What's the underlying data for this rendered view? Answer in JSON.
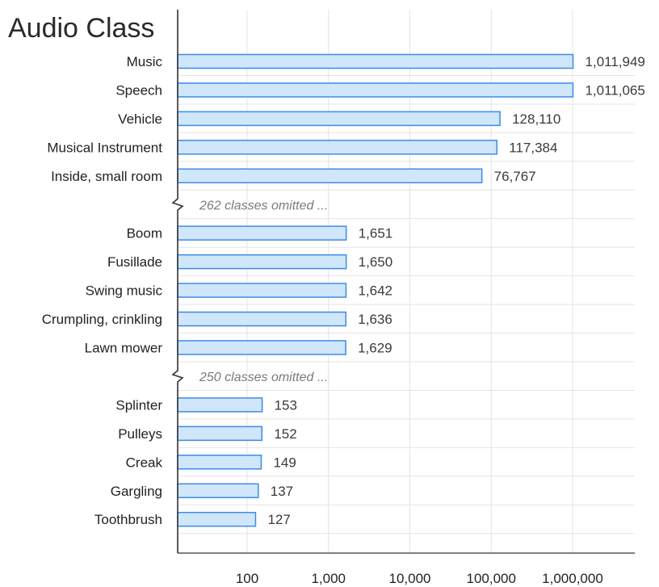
{
  "chart_data": {
    "type": "bar",
    "orientation": "horizontal",
    "title": "Audio Class",
    "xscale": "log",
    "xlim": [
      10,
      5000000
    ],
    "xticks": [
      100,
      1000,
      10000,
      100000,
      1000000
    ],
    "xtick_labels": [
      "100",
      "1,000",
      "10,000",
      "100,000",
      "1,000,000"
    ],
    "grid": true,
    "groups": [
      {
        "items": [
          {
            "label": "Music",
            "value": 1011949,
            "value_label": "1,011,949"
          },
          {
            "label": "Speech",
            "value": 1011065,
            "value_label": "1,011,065"
          },
          {
            "label": "Vehicle",
            "value": 128110,
            "value_label": "128,110"
          },
          {
            "label": "Musical Instrument",
            "value": 117384,
            "value_label": "117,384"
          },
          {
            "label": "Inside, small room",
            "value": 76767,
            "value_label": "76,767"
          }
        ],
        "omitted_after": "262 classes omitted ..."
      },
      {
        "items": [
          {
            "label": "Boom",
            "value": 1651,
            "value_label": "1,651"
          },
          {
            "label": "Fusillade",
            "value": 1650,
            "value_label": "1,650"
          },
          {
            "label": "Swing music",
            "value": 1642,
            "value_label": "1,642"
          },
          {
            "label": "Crumpling, crinkling",
            "value": 1636,
            "value_label": "1,636"
          },
          {
            "label": "Lawn mower",
            "value": 1629,
            "value_label": "1,629"
          }
        ],
        "omitted_after": "250 classes omitted ..."
      },
      {
        "items": [
          {
            "label": "Splinter",
            "value": 153,
            "value_label": "153"
          },
          {
            "label": "Pulleys",
            "value": 152,
            "value_label": "152"
          },
          {
            "label": "Creak",
            "value": 149,
            "value_label": "149"
          },
          {
            "label": "Gargling",
            "value": 137,
            "value_label": "137"
          },
          {
            "label": "Toothbrush",
            "value": 127,
            "value_label": "127"
          }
        ],
        "omitted_after": null
      }
    ],
    "colors": {
      "bar_fill": "#cfe6fb",
      "bar_stroke": "#3d8be6",
      "grid": "#e4e4e4",
      "axis": "#333333"
    }
  }
}
